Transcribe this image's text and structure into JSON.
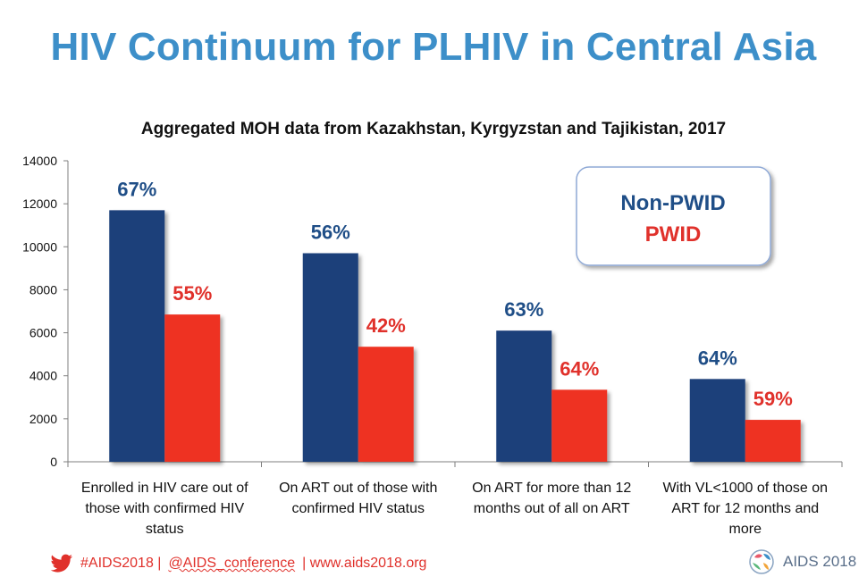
{
  "header": {
    "title": "HIV Continuum for PLHIV in Central Asia"
  },
  "chart_data": {
    "type": "bar",
    "title": "Aggregated MOH data from Kazakhstan, Kyrgyzstan and Tajikistan, 2017",
    "categories": [
      [
        "Enrolled in HIV care out of",
        "those with confirmed HIV",
        "status"
      ],
      [
        "On ART out of those with",
        "confirmed HIV status"
      ],
      [
        "On ART for more than 12",
        "months out of all on ART"
      ],
      [
        "With VL<1000 of those on",
        "ART for 12 months and",
        "more"
      ]
    ],
    "series": [
      {
        "name": "Non-PWID",
        "color": "#1a3f7a",
        "label_color": "#1f4e87",
        "values": [
          11700,
          9700,
          6100,
          3850
        ],
        "labels": [
          "67%",
          "56%",
          "63%",
          "64%"
        ]
      },
      {
        "name": "PWID",
        "color": "#ee3324",
        "label_color": "#e0312b",
        "values": [
          6850,
          5350,
          3350,
          1950
        ],
        "labels": [
          "55%",
          "42%",
          "64%",
          "59%"
        ]
      }
    ],
    "ylim": [
      0,
      14000
    ],
    "yticks": [
      0,
      2000,
      4000,
      6000,
      8000,
      10000,
      12000,
      14000
    ],
    "legend_position": "top-right",
    "grid": false
  },
  "footer": {
    "hashtag": "#AIDS2018 |",
    "handle": "@AIDS_conference",
    "site": "| www.aids2018.org",
    "twitter_icon": "twitter-bird-icon"
  },
  "logo": {
    "text": "AIDS 2018",
    "icon": "aids-conference-logo-icon"
  }
}
